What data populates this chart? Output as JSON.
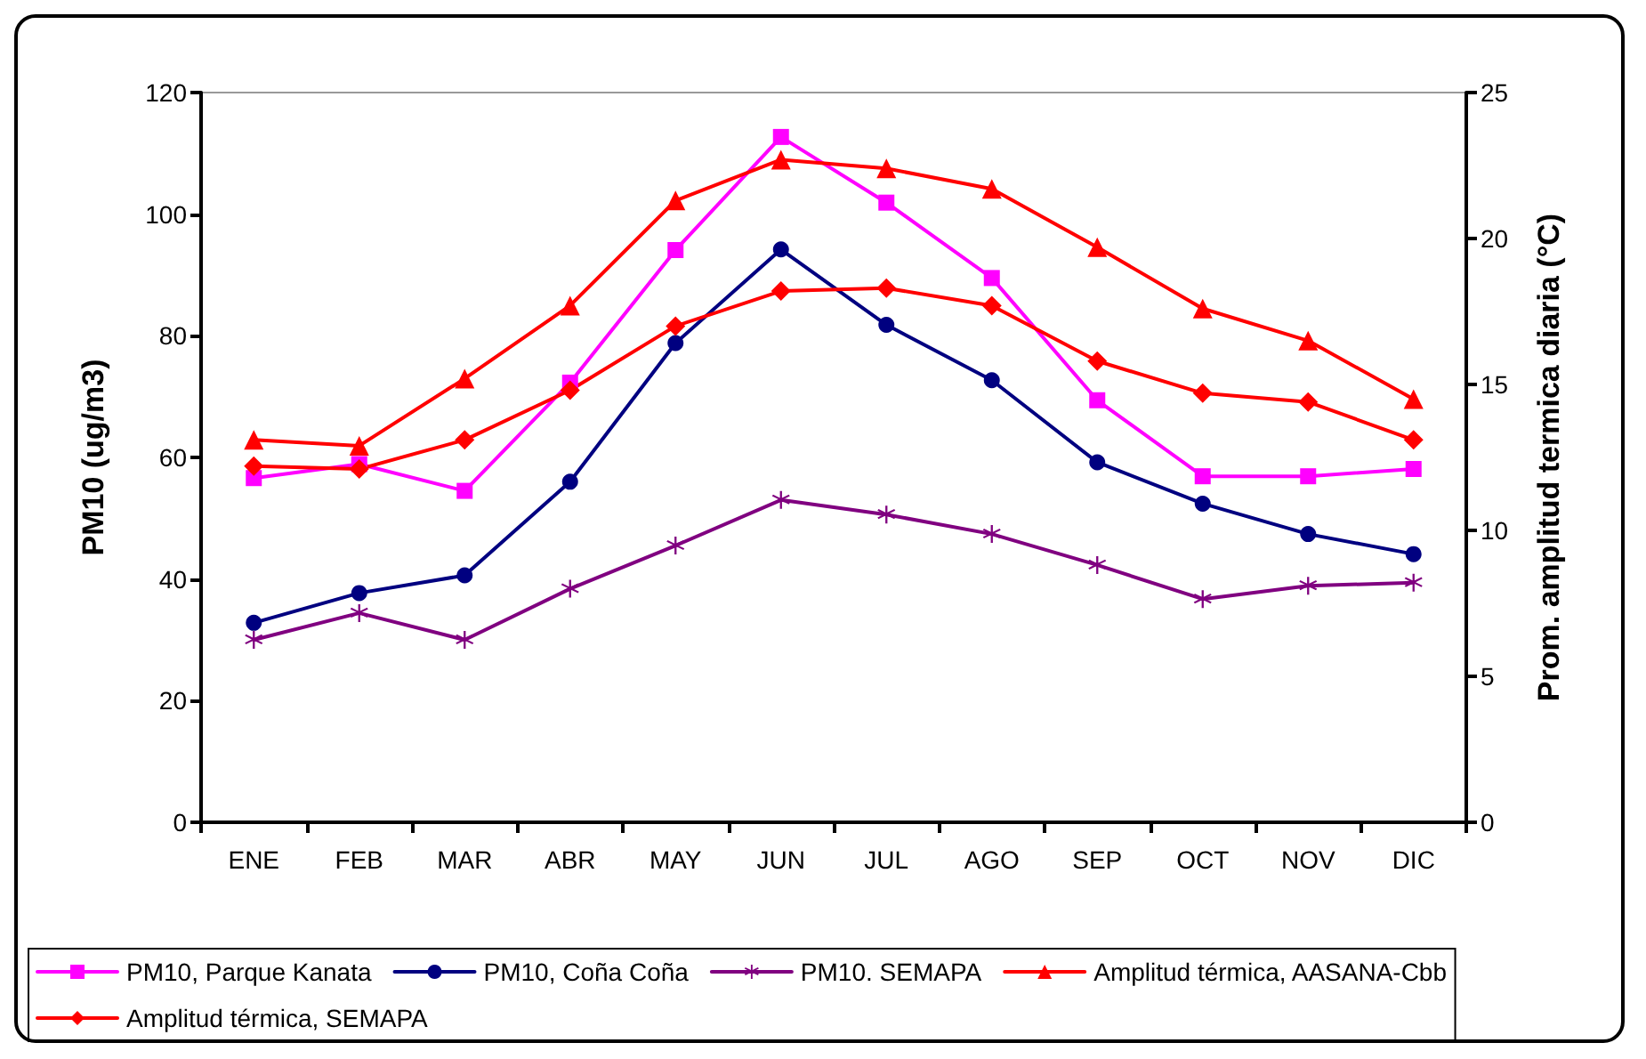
{
  "chart_data": {
    "type": "line",
    "ylabel": "PM10 (ug/m3)",
    "y2label": "Prom. amplitud termica diaria (°C)",
    "categories": [
      "ENE",
      "FEB",
      "MAR",
      "ABR",
      "MAY",
      "JUN",
      "JUL",
      "AGO",
      "SEP",
      "OCT",
      "NOV",
      "DIC"
    ],
    "ylim": [
      0,
      120
    ],
    "yticks": [
      0,
      20,
      40,
      60,
      80,
      100,
      120
    ],
    "y2lim": [
      0,
      25
    ],
    "y2ticks": [
      0,
      5,
      10,
      15,
      20,
      25
    ],
    "grid": false,
    "legend": "bottom",
    "line_style": "solid",
    "series": [
      {
        "name": "PM10, Parque Kanata",
        "color": "#ff00ff",
        "marker": "square",
        "values": [
          56.6,
          58.9,
          54.5,
          72.3,
          94.1,
          112.7,
          101.9,
          89.5,
          69.4,
          56.9,
          56.9,
          58.1
        ]
      },
      {
        "name": "PM10, Coña Coña",
        "color": "#000080",
        "marker": "circle",
        "values": [
          32.8,
          37.7,
          40.6,
          56.0,
          78.8,
          94.2,
          81.8,
          72.7,
          59.2,
          52.4,
          47.4,
          44.1
        ]
      },
      {
        "name": "PM10. SEMAPA",
        "color": "#800080",
        "marker": "star",
        "values": [
          30.0,
          34.4,
          30.0,
          38.4,
          45.5,
          53.0,
          50.6,
          47.4,
          42.3,
          36.7,
          38.9,
          39.4
        ]
      },
      {
        "name": "Amplitud térmica, AASANA-Cbb",
        "color": "#ff0000",
        "marker": "triangle",
        "axis": "y2",
        "values": [
          13.1,
          12.9,
          15.2,
          17.7,
          21.3,
          22.7,
          22.4,
          21.7,
          19.7,
          17.6,
          16.5,
          14.5
        ]
      },
      {
        "name": "Amplitud térmica, SEMAPA",
        "color": "#ff0000",
        "marker": "diamond",
        "axis": "y2",
        "values": [
          12.2,
          12.1,
          13.1,
          14.8,
          17.0,
          18.2,
          18.3,
          17.7,
          15.8,
          14.7,
          14.4,
          13.1
        ]
      }
    ]
  }
}
